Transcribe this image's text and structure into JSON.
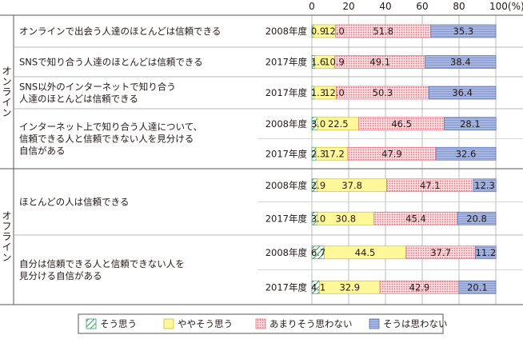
{
  "chart_data": {
    "type": "bar",
    "stacked": true,
    "orientation": "horizontal",
    "xlim": [
      0,
      100
    ],
    "xticks": [
      0,
      20,
      40,
      60,
      80,
      100
    ],
    "xtick_labels": [
      "0",
      "20",
      "40",
      "60",
      "80",
      "100(%)"
    ],
    "side_labels": [
      "オンライン",
      "オフライン"
    ],
    "series": [
      {
        "name": "そう思う",
        "color": "#3aa05a",
        "pattern": "diagonal-hatch"
      },
      {
        "name": "ややそう思う",
        "color": "#fff799",
        "pattern": "solid"
      },
      {
        "name": "あまりそう思わない",
        "color": "#f2a0a8",
        "pattern": "dots"
      },
      {
        "name": "そうは思わない",
        "color": "#a7b7e0",
        "pattern": "horizontal-lines"
      }
    ],
    "groups": [
      {
        "label": [
          "オンラインで出会う人達のほとんどは信頼できる"
        ],
        "rows": [
          {
            "year": "2008年度",
            "values": [
              0.9,
              12.0,
              51.8,
              35.3
            ],
            "labels": [
              "0.9",
              "12.0",
              "51.8",
              "35.3"
            ]
          }
        ]
      },
      {
        "label": [
          "SNSで知り合う人達のほとんどは信頼できる"
        ],
        "rows": [
          {
            "year": "2017年度",
            "values": [
              1.6,
              10.9,
              49.1,
              38.4
            ],
            "labels": [
              "1.6",
              "10.9",
              "49.1",
              "38.4"
            ]
          }
        ]
      },
      {
        "label": [
          "SNS以外のインターネットで知り合う",
          "人達のほとんどは信頼できる"
        ],
        "rows": [
          {
            "year": "2017年度",
            "values": [
              1.3,
              12.0,
              50.3,
              36.4
            ],
            "labels": [
              "1.3",
              "12.0",
              "50.3",
              "36.4"
            ]
          }
        ]
      },
      {
        "label": [
          "インターネット上で知り合う人達について、",
          "信頼できる人と信頼できない人を見分ける",
          "自信がある"
        ],
        "rows": [
          {
            "year": "2008年度",
            "values": [
              3.0,
              22.5,
              46.5,
              28.1
            ],
            "labels": [
              "3.0",
              "22.5",
              "46.5",
              "28.1"
            ]
          },
          {
            "year": "2017年度",
            "values": [
              2.3,
              17.2,
              47.9,
              32.6
            ],
            "labels": [
              "2.3",
              "17.2",
              "47.9",
              "32.6"
            ]
          }
        ]
      },
      {
        "label": [
          "ほとんどの人は信頼できる"
        ],
        "rows": [
          {
            "year": "2008年度",
            "values": [
              2.9,
              37.8,
              47.1,
              12.3
            ],
            "labels": [
              "2.9",
              "37.8",
              "47.1",
              "12.3"
            ]
          },
          {
            "year": "2017年度",
            "values": [
              3.0,
              30.8,
              45.4,
              20.8
            ],
            "labels": [
              "3.0",
              "30.8",
              "45.4",
              "20.8"
            ]
          }
        ]
      },
      {
        "label": [
          "自分は信頼できる人と信頼できない人を",
          "見分ける自信がある"
        ],
        "rows": [
          {
            "year": "2008年度",
            "values": [
              6.7,
              44.5,
              37.7,
              11.2
            ],
            "labels": [
              "6.7",
              "44.5",
              "37.7",
              "11.2"
            ]
          },
          {
            "year": "2017年度",
            "values": [
              4.1,
              32.9,
              42.9,
              20.1
            ],
            "labels": [
              "4.1",
              "32.9",
              "42.9",
              "20.1"
            ]
          }
        ]
      }
    ]
  }
}
